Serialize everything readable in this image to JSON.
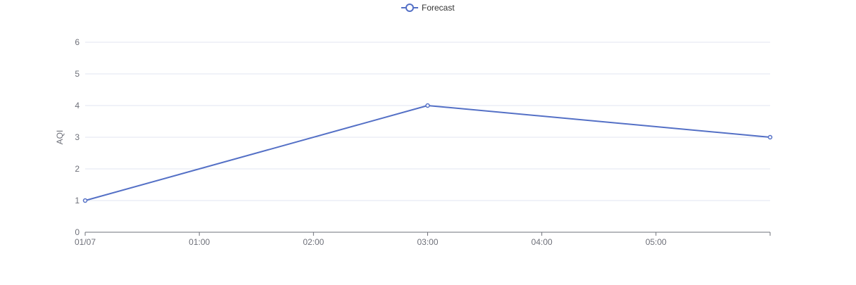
{
  "chart_data": {
    "type": "line",
    "title": "",
    "xlabel": "",
    "ylabel": "AQI",
    "x_tick_labels": [
      "01/07",
      "01:00",
      "02:00",
      "03:00",
      "04:00",
      "05:00"
    ],
    "x_tick_values": [
      0,
      1,
      2,
      3,
      4,
      5
    ],
    "xlim": [
      0,
      6
    ],
    "ylim": [
      0,
      6
    ],
    "y_ticks": [
      0,
      1,
      2,
      3,
      4,
      5,
      6
    ],
    "grid": true,
    "legend": {
      "position": "top-center"
    },
    "series": [
      {
        "name": "Forecast",
        "color": "#5470c6",
        "x": [
          0,
          3,
          6
        ],
        "y": [
          1,
          4,
          3
        ]
      }
    ]
  }
}
